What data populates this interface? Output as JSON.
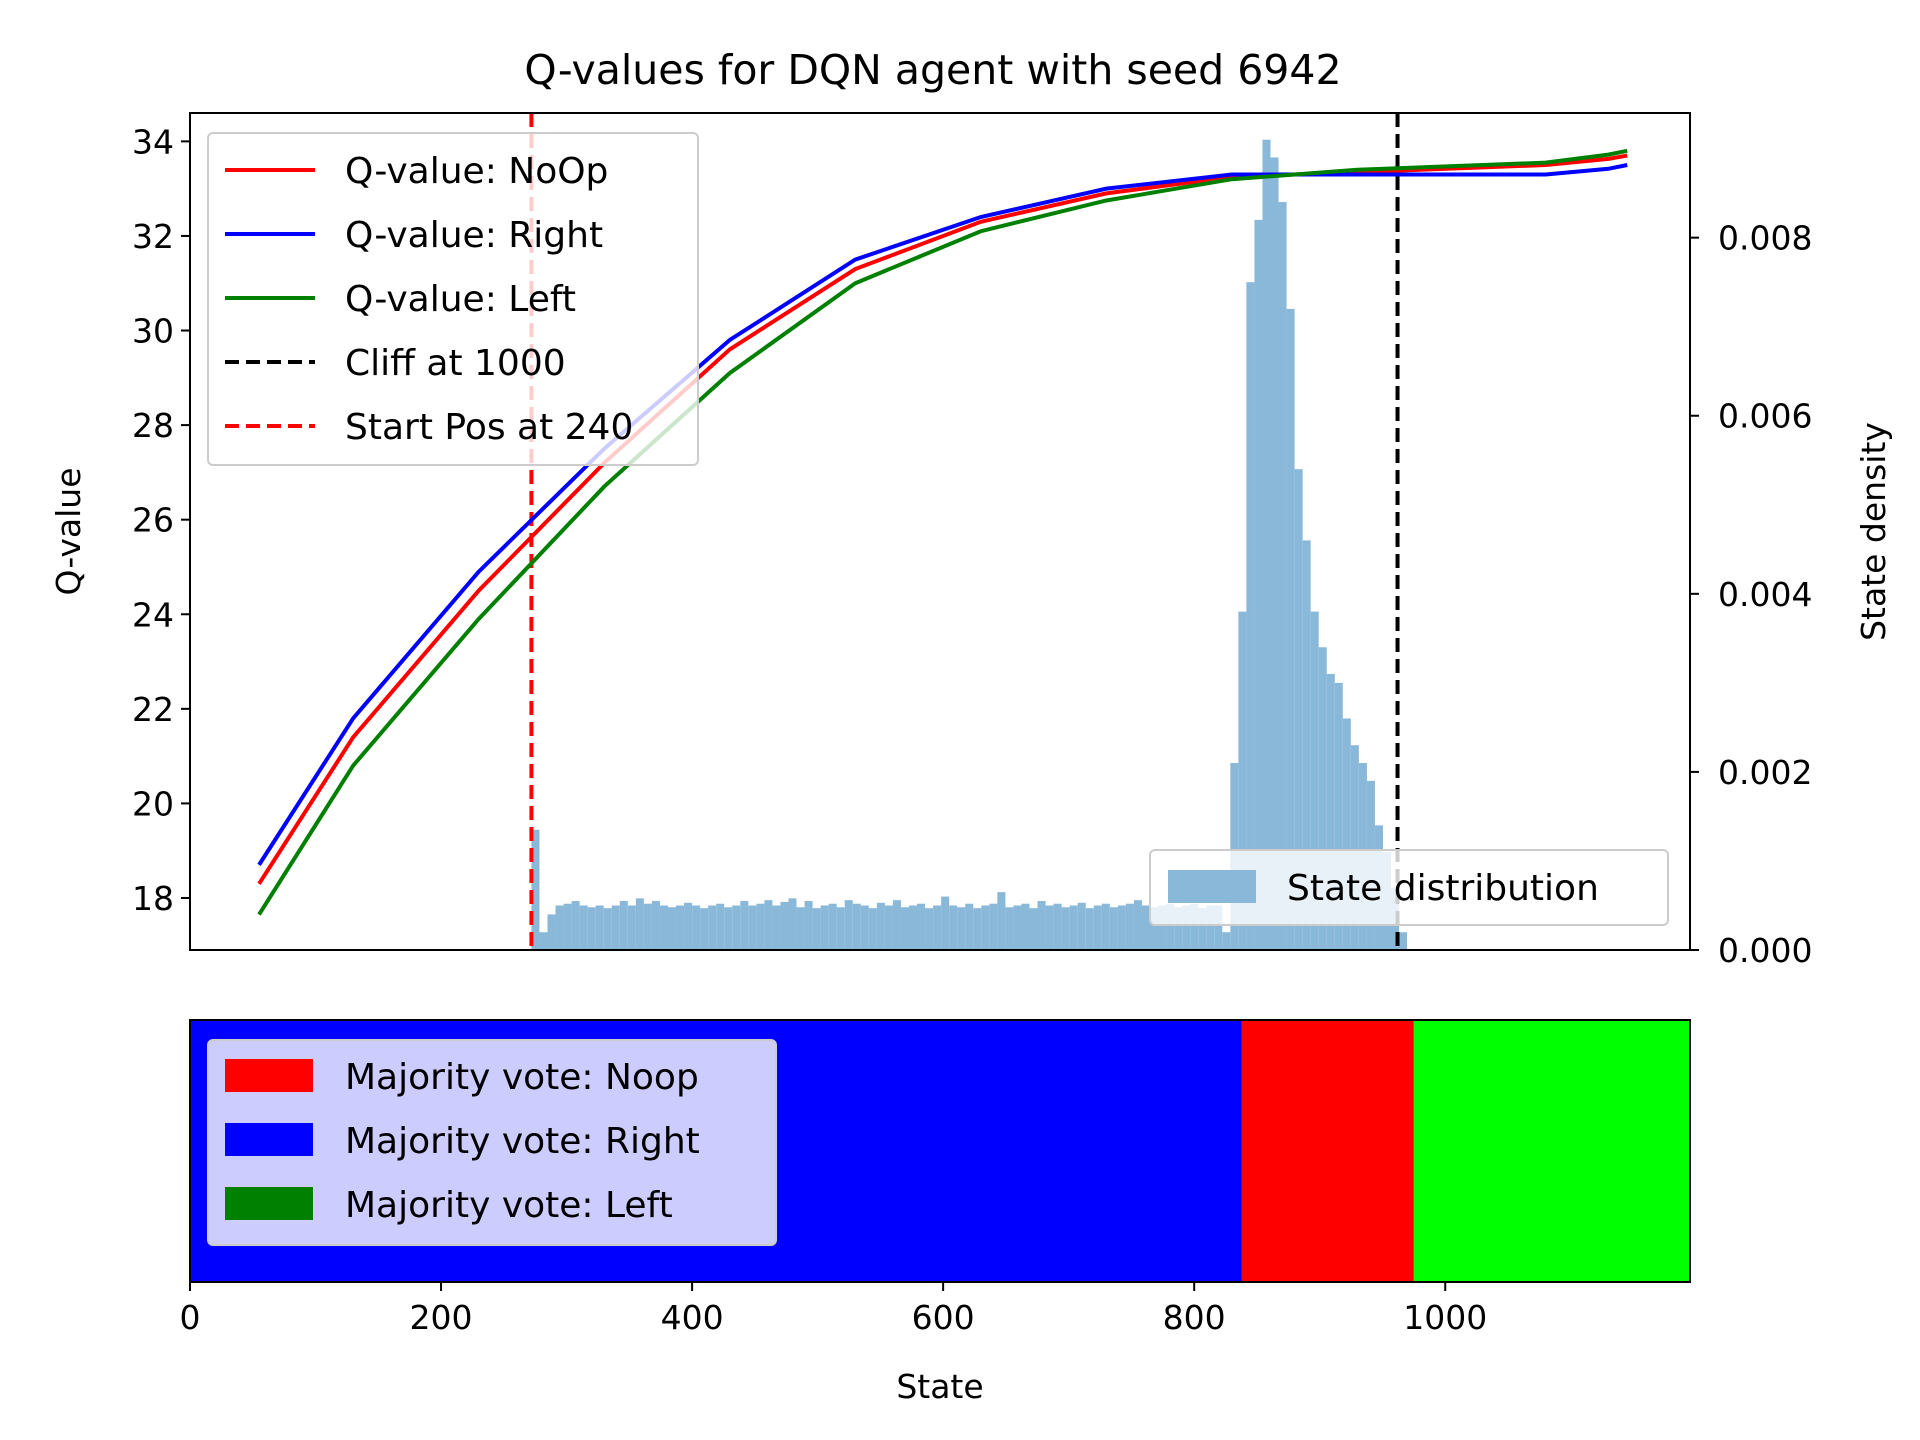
{
  "chart_data": [
    {
      "type": "line",
      "title": "Q-values for DQN agent with seed 6942",
      "xlabel": "",
      "ylabel": "Q-value",
      "y2label": "State density",
      "xlim": [
        0,
        1195
      ],
      "ylim": [
        16.9,
        34.6
      ],
      "y2lim": [
        0,
        0.0094
      ],
      "yticks": [
        18,
        20,
        22,
        24,
        26,
        28,
        30,
        32,
        34
      ],
      "y2ticks": [
        0.0,
        0.002,
        0.004,
        0.006,
        0.008
      ],
      "y2tick_labels": [
        "0.000",
        "0.002",
        "0.004",
        "0.006",
        "0.008"
      ],
      "x": [
        55,
        130,
        230,
        330,
        430,
        530,
        630,
        730,
        830,
        930,
        1030,
        1080,
        1130,
        1145
      ],
      "series": [
        {
          "name": "Q-value: NoOp",
          "color": "#ff0000",
          "values": [
            18.3,
            21.4,
            24.5,
            27.2,
            29.6,
            31.3,
            32.3,
            32.9,
            33.25,
            33.35,
            33.45,
            33.5,
            33.63,
            33.7
          ]
        },
        {
          "name": "Q-value: Right",
          "color": "#0000ff",
          "values": [
            18.7,
            21.8,
            24.9,
            27.5,
            29.8,
            31.5,
            32.4,
            33.0,
            33.3,
            33.3,
            33.3,
            33.3,
            33.42,
            33.5
          ]
        },
        {
          "name": "Q-value: Left",
          "color": "#008000",
          "values": [
            17.65,
            20.8,
            23.9,
            26.7,
            29.1,
            31.0,
            32.1,
            32.75,
            33.2,
            33.4,
            33.5,
            33.55,
            33.72,
            33.8
          ]
        }
      ],
      "vlines": [
        {
          "name": "Cliff at 1000",
          "x": 962,
          "color": "#000000"
        },
        {
          "name": "Start Pos at 240",
          "x": 272,
          "color": "#ff0000"
        }
      ],
      "histogram": {
        "name": "State distribution",
        "color": "#8ab8d9",
        "bin_start": 272,
        "bin_width": 6.4,
        "densities": [
          0.00135,
          0.0002,
          0.0004,
          0.0005,
          0.00052,
          0.00055,
          0.0005,
          0.00048,
          0.0005,
          0.00047,
          0.0005,
          0.00055,
          0.0005,
          0.00058,
          0.00052,
          0.00055,
          0.0005,
          0.00048,
          0.0005,
          0.00053,
          0.0005,
          0.00047,
          0.0005,
          0.00052,
          0.00048,
          0.0005,
          0.00055,
          0.0005,
          0.00052,
          0.00056,
          0.0005,
          0.00054,
          0.00058,
          0.00048,
          0.00055,
          0.00047,
          0.0005,
          0.00052,
          0.00048,
          0.00056,
          0.00052,
          0.0005,
          0.00047,
          0.00053,
          0.0005,
          0.00056,
          0.00048,
          0.0005,
          0.00052,
          0.00047,
          0.0005,
          0.0006,
          0.0005,
          0.00048,
          0.00052,
          0.00047,
          0.0005,
          0.00052,
          0.00065,
          0.00048,
          0.0005,
          0.00052,
          0.00047,
          0.00055,
          0.0005,
          0.00052,
          0.00048,
          0.0005,
          0.00053,
          0.00047,
          0.0005,
          0.00052,
          0.00048,
          0.0005,
          0.00052,
          0.00056,
          0.0005,
          0.00048,
          0.0005,
          0.00052,
          0.00048,
          0.0005,
          0.00052,
          0.00047,
          0.0005,
          0.0005,
          0.0002,
          0.0021,
          0.0038,
          0.0075,
          0.0082,
          0.0091,
          0.0089,
          0.0084,
          0.0072,
          0.0054,
          0.0046,
          0.0038,
          0.0034,
          0.0031,
          0.003,
          0.0026,
          0.0023,
          0.0021,
          0.0019,
          0.0014,
          0.0011,
          0.0007,
          0.0002
        ]
      },
      "legend_position": "upper-left",
      "legend2_position": "lower-right"
    },
    {
      "type": "bar",
      "xlabel": "State",
      "xlim": [
        0,
        1195
      ],
      "xticks": [
        0,
        200,
        400,
        600,
        800,
        1000
      ],
      "segments": [
        {
          "from": 0,
          "to": 838,
          "color": "#0000ff"
        },
        {
          "from": 838,
          "to": 975,
          "color": "#ff0000"
        },
        {
          "from": 975,
          "to": 1195,
          "color": "#00ff00"
        }
      ],
      "legend": [
        {
          "name": "Majority vote: Noop",
          "color": "#ff0000"
        },
        {
          "name": "Majority vote: Right",
          "color": "#0000ff"
        },
        {
          "name": "Majority vote: Left",
          "color": "#008000"
        }
      ],
      "legend_position": "upper-left"
    }
  ]
}
